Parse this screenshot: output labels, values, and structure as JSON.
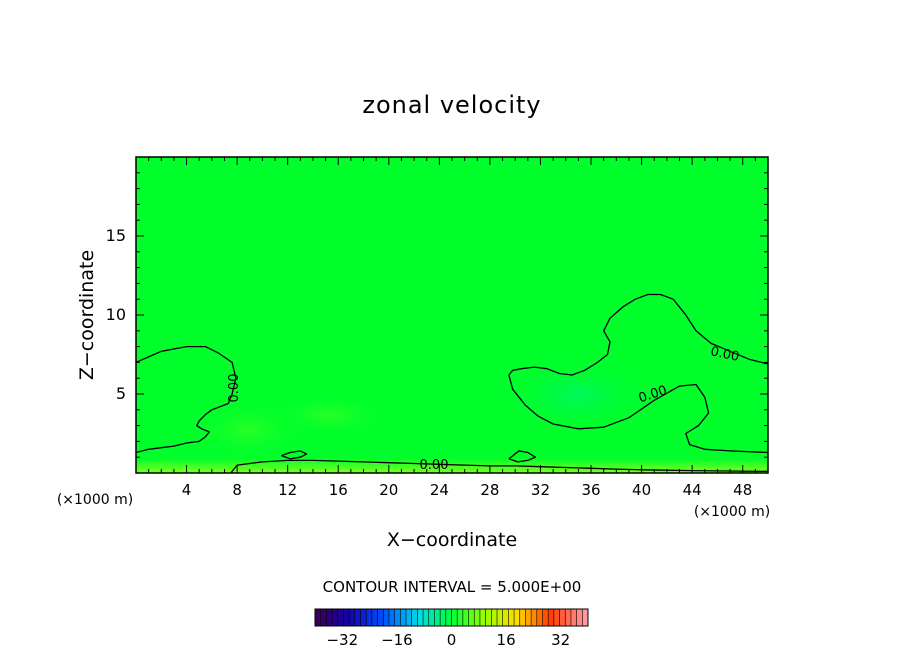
{
  "chart_data": {
    "type": "contour",
    "title": "zonal velocity",
    "xlabel": "X−coordinate",
    "ylabel": "Z−coordinate",
    "x_unit_left": "(×1000 m)",
    "x_unit_right": "(×1000 m)",
    "xlim": [
      0,
      50
    ],
    "ylim": [
      0,
      20
    ],
    "x_ticks": [
      4,
      8,
      12,
      16,
      20,
      24,
      28,
      32,
      36,
      40,
      44,
      48
    ],
    "y_ticks": [
      5,
      10,
      15
    ],
    "background_color": "#00ff2b",
    "contour_label": "0.00",
    "contour_interval_text": "CONTOUR INTERVAL = 5.000E+00",
    "colorbar": {
      "range": [
        -40,
        40
      ],
      "ticks": [
        -32,
        -16,
        0,
        16,
        32
      ],
      "tick_labels": [
        "−32",
        "−16",
        "0",
        "16",
        "32"
      ]
    },
    "contours": [
      {
        "value": 0,
        "points": [
          [
            0,
            7
          ],
          [
            2,
            7.7
          ],
          [
            4,
            8
          ],
          [
            5.5,
            8
          ],
          [
            6.5,
            7.6
          ],
          [
            7.6,
            7
          ],
          [
            7.9,
            6
          ],
          [
            7.6,
            5
          ],
          [
            7.3,
            4.4
          ],
          [
            6,
            4
          ],
          [
            5.5,
            3.7
          ],
          [
            5,
            3.3
          ],
          [
            4.8,
            3
          ],
          [
            5.2,
            2.8
          ],
          [
            5.8,
            2.6
          ],
          [
            5.5,
            2.3
          ],
          [
            5,
            2
          ],
          [
            4,
            1.9
          ],
          [
            3,
            1.7
          ],
          [
            2,
            1.6
          ],
          [
            1,
            1.5
          ],
          [
            0,
            1.3
          ]
        ]
      },
      {
        "value": 0,
        "points": [
          [
            7.5,
            0
          ],
          [
            8,
            0.5
          ],
          [
            10,
            0.7
          ],
          [
            12,
            0.8
          ],
          [
            14,
            0.8
          ],
          [
            16,
            0.75
          ],
          [
            18,
            0.7
          ],
          [
            20,
            0.65
          ],
          [
            22,
            0.6
          ],
          [
            24,
            0.55
          ],
          [
            26,
            0.5
          ],
          [
            28,
            0.45
          ],
          [
            30,
            0.45
          ],
          [
            32,
            0.4
          ],
          [
            34,
            0.35
          ],
          [
            36,
            0.3
          ],
          [
            38,
            0.25
          ],
          [
            40,
            0.2
          ],
          [
            44,
            0.15
          ],
          [
            50,
            0.1
          ]
        ]
      },
      {
        "value": 0,
        "points": [
          [
            29.5,
            6.2
          ],
          [
            29.8,
            5.3
          ],
          [
            30.8,
            4.3
          ],
          [
            31.8,
            3.6
          ],
          [
            33,
            3.1
          ],
          [
            35,
            2.8
          ],
          [
            37,
            2.9
          ],
          [
            39,
            3.5
          ],
          [
            41,
            4.6
          ],
          [
            43,
            5.5
          ],
          [
            44.3,
            5.6
          ],
          [
            45,
            4.8
          ],
          [
            45.3,
            3.8
          ],
          [
            44.5,
            3
          ],
          [
            43.5,
            2.5
          ],
          [
            43.8,
            1.8
          ],
          [
            45,
            1.5
          ],
          [
            47,
            1.4
          ],
          [
            50,
            1.3
          ]
        ]
      },
      {
        "value": 0,
        "points": [
          [
            50,
            6.9
          ],
          [
            48.5,
            7.2
          ],
          [
            47,
            7.7
          ],
          [
            45.5,
            8.2
          ],
          [
            44.3,
            9
          ],
          [
            43.5,
            10
          ],
          [
            42.5,
            11
          ],
          [
            41.5,
            11.3
          ],
          [
            40.5,
            11.3
          ],
          [
            39.5,
            11
          ],
          [
            38.5,
            10.5
          ],
          [
            37.5,
            9.8
          ],
          [
            37,
            9
          ],
          [
            37.5,
            8.3
          ],
          [
            37.3,
            7.5
          ],
          [
            36.5,
            7
          ],
          [
            35.5,
            6.5
          ],
          [
            34.5,
            6.2
          ],
          [
            33.5,
            6.3
          ],
          [
            32.5,
            6.6
          ],
          [
            31.5,
            6.7
          ],
          [
            30.5,
            6.6
          ],
          [
            29.8,
            6.5
          ],
          [
            29.5,
            6.2
          ]
        ]
      },
      {
        "value": 0,
        "points": [
          [
            11.5,
            1.1
          ],
          [
            12.2,
            1.3
          ],
          [
            13,
            1.4
          ],
          [
            13.5,
            1.2
          ],
          [
            13,
            1
          ],
          [
            12.2,
            0.9
          ],
          [
            11.5,
            1.1
          ]
        ]
      },
      {
        "value": 0,
        "points": [
          [
            29.5,
            0.9
          ],
          [
            30.3,
            1.4
          ],
          [
            31,
            1.3
          ],
          [
            31.6,
            1
          ],
          [
            31,
            0.8
          ],
          [
            30.2,
            0.7
          ],
          [
            29.5,
            0.9
          ]
        ]
      }
    ]
  }
}
